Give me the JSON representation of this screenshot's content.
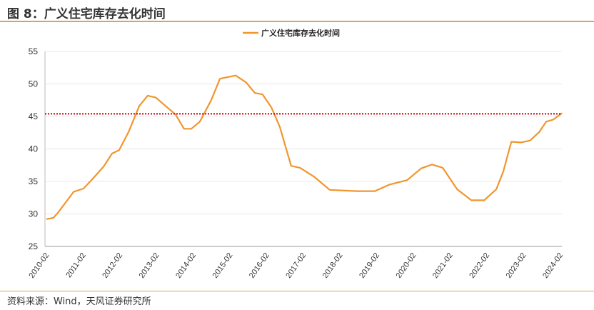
{
  "title": "图 8：广义住宅库存去化时间",
  "source": "资料来源：Wind，天风证券研究所",
  "chart_data": {
    "type": "line",
    "title": "",
    "xlabel": "",
    "ylabel": "",
    "ylim": [
      25,
      55
    ],
    "yticks": [
      25,
      30,
      35,
      40,
      45,
      50,
      55
    ],
    "xticks": [
      "2010-02",
      "2011-02",
      "2012-02",
      "2013-02",
      "2014-02",
      "2015-02",
      "2016-02",
      "2017-02",
      "2018-02",
      "2019-02",
      "2020-02",
      "2021-02",
      "2022-02",
      "2023-02",
      "2024-02"
    ],
    "legend": {
      "position": "top-center",
      "label": "广义住宅库存去化时间"
    },
    "reference_line": {
      "value": 45.4,
      "style": "dotted",
      "color": "#c00000"
    },
    "series": [
      {
        "name": "广义住宅库存去化时间",
        "color": "#f0962e",
        "x": [
          2010.08,
          2010.27,
          2010.41,
          2010.61,
          2010.82,
          2011.09,
          2011.34,
          2011.64,
          2011.87,
          2012.06,
          2012.32,
          2012.61,
          2012.84,
          2013.06,
          2013.33,
          2013.6,
          2013.83,
          2014.03,
          2014.26,
          2014.57,
          2014.81,
          2015.24,
          2015.53,
          2015.76,
          2015.97,
          2016.21,
          2016.44,
          2016.75,
          2016.99,
          2017.38,
          2017.8,
          2018.54,
          2019.03,
          2019.42,
          2019.91,
          2020.29,
          2020.59,
          2020.88,
          2021.27,
          2021.66,
          2022.01,
          2022.34,
          2022.53,
          2022.75,
          2023.02,
          2023.26,
          2023.51,
          2023.7,
          2023.89,
          2024.13
        ],
        "values": [
          29.2,
          29.4,
          30.3,
          31.8,
          33.4,
          33.9,
          35.4,
          37.3,
          39.3,
          39.8,
          42.6,
          46.6,
          48.2,
          47.9,
          46.6,
          45.3,
          43.1,
          43.1,
          44.2,
          47.5,
          50.8,
          51.3,
          50.2,
          48.6,
          48.4,
          46.4,
          43.4,
          37.4,
          37.1,
          35.7,
          33.7,
          33.5,
          33.5,
          34.5,
          35.2,
          37.0,
          37.6,
          37.1,
          33.8,
          32.1,
          32.1,
          33.8,
          36.5,
          41.1,
          41.0,
          41.3,
          42.6,
          44.2,
          44.5,
          45.5
        ]
      }
    ]
  }
}
